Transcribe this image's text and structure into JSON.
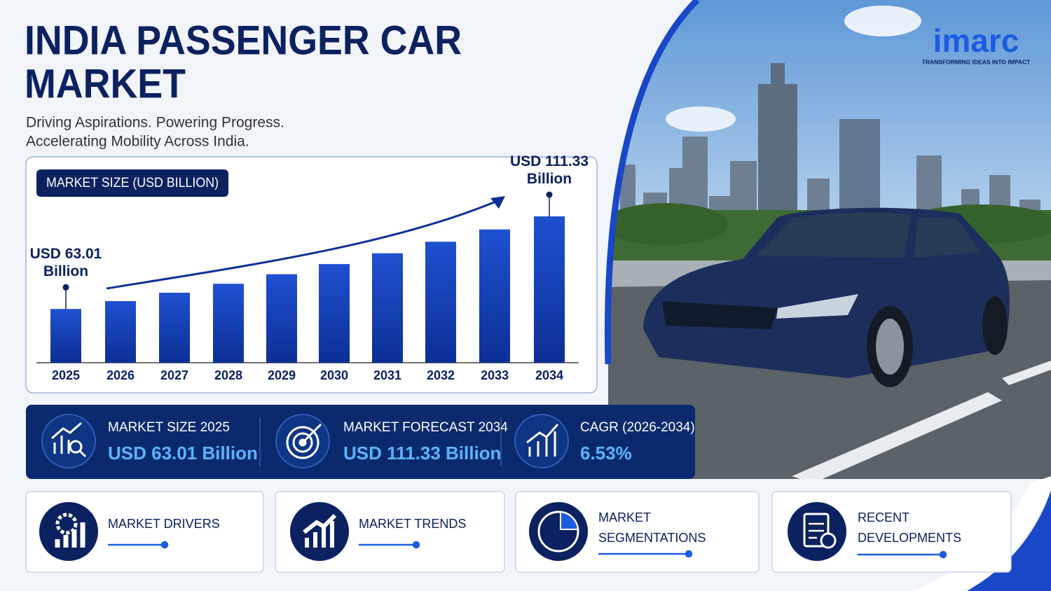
{
  "header": {
    "title_lines": [
      "INDIA PASSENGER CAR",
      "MARKET"
    ],
    "subtitle_lines": [
      "Driving Aspirations. Powering Progress.",
      "Accelerating Mobility Across India."
    ]
  },
  "brand": {
    "name": "imarc",
    "tagline": "TRANSFORMING IDEAS INTO IMPACT"
  },
  "chart_data": {
    "type": "bar",
    "title": "MARKET SIZE (USD BILLION)",
    "categories": [
      "2025",
      "2026",
      "2027",
      "2028",
      "2029",
      "2030",
      "2031",
      "2032",
      "2033",
      "2034"
    ],
    "values": [
      63.01,
      67.12,
      71.51,
      76.18,
      81.15,
      86.45,
      92.09,
      98.11,
      104.51,
      111.33
    ],
    "value_labels": [
      "USD 63.01 Billion",
      null,
      null,
      null,
      null,
      null,
      null,
      null,
      null,
      "USD 111.33 Billion"
    ],
    "color": "#1443b8"
  },
  "stats": [
    {
      "label": "MARKET SIZE 2025",
      "value": "USD 63.01 Billion"
    },
    {
      "label": "MARKET FORECAST 2034",
      "value": "USD 111.33 Billion"
    },
    {
      "label": "CAGR (2026-2034)",
      "value": "6.53%"
    }
  ],
  "cards": [
    [
      "MARKET DRIVERS"
    ],
    [
      "MARKET TRENDS"
    ],
    [
      "MARKET",
      "SEGMENTATIONS"
    ],
    [
      "RECENT",
      "DEVELOPMENTS"
    ]
  ]
}
